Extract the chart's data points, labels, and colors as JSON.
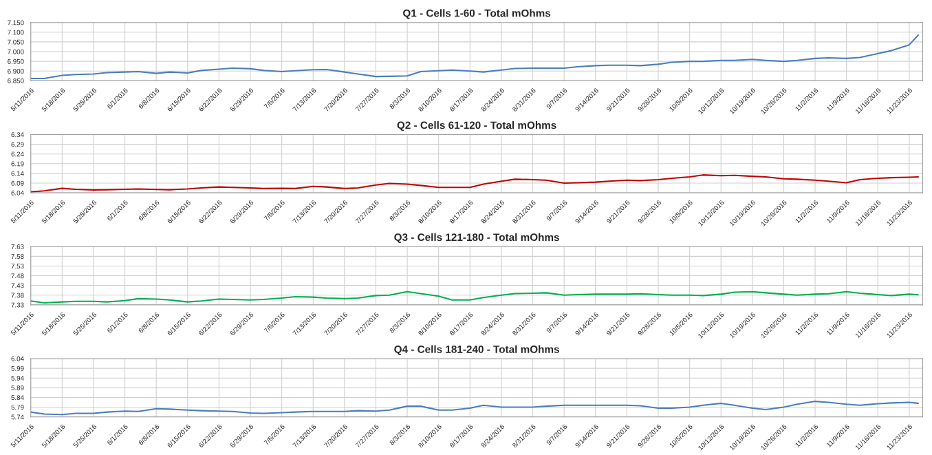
{
  "chart_data": [
    {
      "type": "line",
      "title": "Q1 - Cells 1-60 - Total mOhms",
      "grid": true,
      "marker": "none",
      "line_style": "solid",
      "x": [
        "2016-05-11",
        "2016-05-14",
        "2016-05-18",
        "2016-05-21",
        "2016-05-25",
        "2016-05-28",
        "2016-06-01",
        "2016-06-04",
        "2016-06-08",
        "2016-06-11",
        "2016-06-15",
        "2016-06-18",
        "2016-06-22",
        "2016-06-25",
        "2016-06-29",
        "2016-07-02",
        "2016-07-06",
        "2016-07-09",
        "2016-07-13",
        "2016-07-16",
        "2016-07-20",
        "2016-07-23",
        "2016-07-27",
        "2016-07-30",
        "2016-08-03",
        "2016-08-06",
        "2016-08-10",
        "2016-08-13",
        "2016-08-17",
        "2016-08-20",
        "2016-08-24",
        "2016-08-27",
        "2016-08-31",
        "2016-09-03",
        "2016-09-07",
        "2016-09-10",
        "2016-09-14",
        "2016-09-17",
        "2016-09-21",
        "2016-09-24",
        "2016-09-28",
        "2016-10-01",
        "2016-10-05",
        "2016-10-08",
        "2016-10-12",
        "2016-10-15",
        "2016-10-19",
        "2016-10-22",
        "2016-10-26",
        "2016-10-29",
        "2016-11-02",
        "2016-11-05",
        "2016-11-09",
        "2016-11-12",
        "2016-11-16",
        "2016-11-19",
        "2016-11-23",
        "2016-11-25"
      ],
      "series": [
        {
          "color": "#4a7ebb",
          "values": [
            6.862,
            6.862,
            6.878,
            6.882,
            6.885,
            6.892,
            6.895,
            6.897,
            6.888,
            6.895,
            6.89,
            6.903,
            6.91,
            6.915,
            6.912,
            6.903,
            6.897,
            6.902,
            6.907,
            6.908,
            6.895,
            6.885,
            6.872,
            6.873,
            6.875,
            6.897,
            6.902,
            6.905,
            6.9,
            6.895,
            6.905,
            6.913,
            6.915,
            6.915,
            6.915,
            6.922,
            6.928,
            6.93,
            6.93,
            6.928,
            6.935,
            6.945,
            6.95,
            6.95,
            6.955,
            6.955,
            6.96,
            6.955,
            6.95,
            6.955,
            6.965,
            6.968,
            6.965,
            6.97,
            6.99,
            7.005,
            7.035,
            7.085
          ]
        }
      ],
      "xlim": [
        "2016-05-11",
        "2016-11-26"
      ],
      "xticks": [
        {
          "value": "2016-05-11",
          "label": "5/11/2016"
        },
        {
          "value": "2016-05-18",
          "label": "5/18/2016"
        },
        {
          "value": "2016-05-25",
          "label": "5/25/2016"
        },
        {
          "value": "2016-06-01",
          "label": "6/1/2016"
        },
        {
          "value": "2016-06-08",
          "label": "6/8/2016"
        },
        {
          "value": "2016-06-15",
          "label": "6/15/2016"
        },
        {
          "value": "2016-06-22",
          "label": "6/22/2016"
        },
        {
          "value": "2016-06-29",
          "label": "6/29/2016"
        },
        {
          "value": "2016-07-06",
          "label": "7/6/2016"
        },
        {
          "value": "2016-07-13",
          "label": "7/13/2016"
        },
        {
          "value": "2016-07-20",
          "label": "7/20/2016"
        },
        {
          "value": "2016-07-27",
          "label": "7/27/2016"
        },
        {
          "value": "2016-08-03",
          "label": "8/3/2016"
        },
        {
          "value": "2016-08-10",
          "label": "8/10/2016"
        },
        {
          "value": "2016-08-17",
          "label": "8/17/2016"
        },
        {
          "value": "2016-08-24",
          "label": "8/24/2016"
        },
        {
          "value": "2016-08-31",
          "label": "8/31/2016"
        },
        {
          "value": "2016-09-07",
          "label": "9/7/2016"
        },
        {
          "value": "2016-09-14",
          "label": "9/14/2016"
        },
        {
          "value": "2016-09-21",
          "label": "9/21/2016"
        },
        {
          "value": "2016-09-28",
          "label": "9/28/2016"
        },
        {
          "value": "2016-10-05",
          "label": "10/5/2016"
        },
        {
          "value": "2016-10-12",
          "label": "10/12/2016"
        },
        {
          "value": "2016-10-19",
          "label": "10/19/2016"
        },
        {
          "value": "2016-10-26",
          "label": "10/26/2016"
        },
        {
          "value": "2016-11-02",
          "label": "11/2/2016"
        },
        {
          "value": "2016-11-09",
          "label": "11/9/2016"
        },
        {
          "value": "2016-11-16",
          "label": "11/16/2016"
        },
        {
          "value": "2016-11-23",
          "label": "11/23/2016"
        }
      ],
      "ylim": [
        6.85,
        7.15
      ],
      "yticks": [
        {
          "value": 6.85,
          "label": "6.850"
        },
        {
          "value": 6.9,
          "label": "6.900"
        },
        {
          "value": 6.95,
          "label": "6.950"
        },
        {
          "value": 7.0,
          "label": "7.000"
        },
        {
          "value": 7.05,
          "label": "7.050"
        },
        {
          "value": 7.1,
          "label": "7.100"
        },
        {
          "value": 7.15,
          "label": "7.150"
        }
      ]
    },
    {
      "type": "line",
      "title": "Q2 - Cells 61-120 - Total mOhms",
      "grid": true,
      "marker": "none",
      "line_style": "solid",
      "x": [
        "2016-05-11",
        "2016-05-14",
        "2016-05-18",
        "2016-05-21",
        "2016-05-25",
        "2016-05-28",
        "2016-06-01",
        "2016-06-04",
        "2016-06-08",
        "2016-06-11",
        "2016-06-15",
        "2016-06-18",
        "2016-06-22",
        "2016-06-25",
        "2016-06-29",
        "2016-07-02",
        "2016-07-06",
        "2016-07-09",
        "2016-07-13",
        "2016-07-16",
        "2016-07-20",
        "2016-07-23",
        "2016-07-27",
        "2016-07-30",
        "2016-08-03",
        "2016-08-06",
        "2016-08-10",
        "2016-08-13",
        "2016-08-17",
        "2016-08-20",
        "2016-08-24",
        "2016-08-27",
        "2016-08-31",
        "2016-09-03",
        "2016-09-07",
        "2016-09-10",
        "2016-09-14",
        "2016-09-17",
        "2016-09-21",
        "2016-09-24",
        "2016-09-28",
        "2016-10-01",
        "2016-10-05",
        "2016-10-08",
        "2016-10-12",
        "2016-10-15",
        "2016-10-19",
        "2016-10-22",
        "2016-10-26",
        "2016-10-29",
        "2016-11-02",
        "2016-11-05",
        "2016-11-09",
        "2016-11-12",
        "2016-11-16",
        "2016-11-19",
        "2016-11-23",
        "2016-11-25"
      ],
      "series": [
        {
          "color": "#c00000",
          "values": [
            6.045,
            6.05,
            6.063,
            6.058,
            6.055,
            6.056,
            6.058,
            6.06,
            6.057,
            6.056,
            6.06,
            6.065,
            6.07,
            6.068,
            6.065,
            6.062,
            6.063,
            6.062,
            6.073,
            6.07,
            6.062,
            6.065,
            6.08,
            6.088,
            6.085,
            6.078,
            6.068,
            6.068,
            6.068,
            6.085,
            6.1,
            6.11,
            6.108,
            6.105,
            6.09,
            6.092,
            6.095,
            6.1,
            6.105,
            6.103,
            6.108,
            6.115,
            6.122,
            6.132,
            6.128,
            6.13,
            6.125,
            6.122,
            6.112,
            6.11,
            6.105,
            6.1,
            6.092,
            6.108,
            6.115,
            6.118,
            6.12,
            6.122
          ]
        }
      ],
      "xlim": [
        "2016-05-11",
        "2016-11-26"
      ],
      "xticks": [
        {
          "value": "2016-05-11",
          "label": "5/11/2016"
        },
        {
          "value": "2016-05-18",
          "label": "5/18/2016"
        },
        {
          "value": "2016-05-25",
          "label": "5/25/2016"
        },
        {
          "value": "2016-06-01",
          "label": "6/1/2016"
        },
        {
          "value": "2016-06-08",
          "label": "6/8/2016"
        },
        {
          "value": "2016-06-15",
          "label": "6/15/2016"
        },
        {
          "value": "2016-06-22",
          "label": "6/22/2016"
        },
        {
          "value": "2016-06-29",
          "label": "6/29/2016"
        },
        {
          "value": "2016-07-06",
          "label": "7/6/2016"
        },
        {
          "value": "2016-07-13",
          "label": "7/13/2016"
        },
        {
          "value": "2016-07-20",
          "label": "7/20/2016"
        },
        {
          "value": "2016-07-27",
          "label": "7/27/2016"
        },
        {
          "value": "2016-08-03",
          "label": "8/3/2016"
        },
        {
          "value": "2016-08-10",
          "label": "8/10/2016"
        },
        {
          "value": "2016-08-17",
          "label": "8/17/2016"
        },
        {
          "value": "2016-08-24",
          "label": "8/24/2016"
        },
        {
          "value": "2016-08-31",
          "label": "8/31/2016"
        },
        {
          "value": "2016-09-07",
          "label": "9/7/2016"
        },
        {
          "value": "2016-09-14",
          "label": "9/14/2016"
        },
        {
          "value": "2016-09-21",
          "label": "9/21/2016"
        },
        {
          "value": "2016-09-28",
          "label": "9/28/2016"
        },
        {
          "value": "2016-10-05",
          "label": "10/5/2016"
        },
        {
          "value": "2016-10-12",
          "label": "10/12/2016"
        },
        {
          "value": "2016-10-19",
          "label": "10/19/2016"
        },
        {
          "value": "2016-10-26",
          "label": "10/26/2016"
        },
        {
          "value": "2016-11-02",
          "label": "11/2/2016"
        },
        {
          "value": "2016-11-09",
          "label": "11/9/2016"
        },
        {
          "value": "2016-11-16",
          "label": "11/16/2016"
        },
        {
          "value": "2016-11-23",
          "label": "11/23/2016"
        }
      ],
      "ylim": [
        6.04,
        6.34
      ],
      "yticks": [
        6.04,
        6.09,
        6.14,
        6.19,
        6.24,
        6.29,
        6.34
      ]
    },
    {
      "type": "line",
      "title": "Q3 - Cells 121-180 - Total mOhms",
      "grid": true,
      "marker": "none",
      "line_style": "solid",
      "x": [
        "2016-05-11",
        "2016-05-14",
        "2016-05-18",
        "2016-05-21",
        "2016-05-25",
        "2016-05-28",
        "2016-06-01",
        "2016-06-04",
        "2016-06-08",
        "2016-06-11",
        "2016-06-15",
        "2016-06-18",
        "2016-06-22",
        "2016-06-25",
        "2016-06-29",
        "2016-07-02",
        "2016-07-06",
        "2016-07-09",
        "2016-07-13",
        "2016-07-16",
        "2016-07-20",
        "2016-07-23",
        "2016-07-27",
        "2016-07-30",
        "2016-08-03",
        "2016-08-06",
        "2016-08-10",
        "2016-08-13",
        "2016-08-17",
        "2016-08-20",
        "2016-08-24",
        "2016-08-27",
        "2016-08-31",
        "2016-09-03",
        "2016-09-07",
        "2016-09-10",
        "2016-09-14",
        "2016-09-17",
        "2016-09-21",
        "2016-09-24",
        "2016-09-28",
        "2016-10-01",
        "2016-10-05",
        "2016-10-08",
        "2016-10-12",
        "2016-10-15",
        "2016-10-19",
        "2016-10-22",
        "2016-10-26",
        "2016-10-29",
        "2016-11-02",
        "2016-11-05",
        "2016-11-09",
        "2016-11-12",
        "2016-11-16",
        "2016-11-19",
        "2016-11-23",
        "2016-11-25"
      ],
      "series": [
        {
          "color": "#00b050",
          "values": [
            7.35,
            7.34,
            7.345,
            7.348,
            7.348,
            7.345,
            7.352,
            7.362,
            7.36,
            7.355,
            7.345,
            7.35,
            7.36,
            7.358,
            7.355,
            7.358,
            7.365,
            7.372,
            7.37,
            7.365,
            7.362,
            7.365,
            7.378,
            7.38,
            7.398,
            7.388,
            7.375,
            7.355,
            7.355,
            7.368,
            7.38,
            7.388,
            7.39,
            7.392,
            7.38,
            7.383,
            7.385,
            7.385,
            7.385,
            7.387,
            7.383,
            7.38,
            7.38,
            7.378,
            7.385,
            7.395,
            7.398,
            7.392,
            7.385,
            7.38,
            7.385,
            7.387,
            7.398,
            7.39,
            7.383,
            7.378,
            7.385,
            7.382
          ]
        }
      ],
      "xlim": [
        "2016-05-11",
        "2016-11-26"
      ],
      "xticks": [
        {
          "value": "2016-05-11",
          "label": "5/11/2016"
        },
        {
          "value": "2016-05-18",
          "label": "5/18/2016"
        },
        {
          "value": "2016-05-25",
          "label": "5/25/2016"
        },
        {
          "value": "2016-06-01",
          "label": "6/1/2016"
        },
        {
          "value": "2016-06-08",
          "label": "6/8/2016"
        },
        {
          "value": "2016-06-15",
          "label": "6/15/2016"
        },
        {
          "value": "2016-06-22",
          "label": "6/22/2016"
        },
        {
          "value": "2016-06-29",
          "label": "6/29/2016"
        },
        {
          "value": "2016-07-06",
          "label": "7/6/2016"
        },
        {
          "value": "2016-07-13",
          "label": "7/13/2016"
        },
        {
          "value": "2016-07-20",
          "label": "7/20/2016"
        },
        {
          "value": "2016-07-27",
          "label": "7/27/2016"
        },
        {
          "value": "2016-08-03",
          "label": "8/3/2016"
        },
        {
          "value": "2016-08-10",
          "label": "8/10/2016"
        },
        {
          "value": "2016-08-17",
          "label": "8/17/2016"
        },
        {
          "value": "2016-08-24",
          "label": "8/24/2016"
        },
        {
          "value": "2016-08-31",
          "label": "8/31/2016"
        },
        {
          "value": "2016-09-07",
          "label": "9/7/2016"
        },
        {
          "value": "2016-09-14",
          "label": "9/14/2016"
        },
        {
          "value": "2016-09-21",
          "label": "9/21/2016"
        },
        {
          "value": "2016-09-28",
          "label": "9/28/2016"
        },
        {
          "value": "2016-10-05",
          "label": "10/5/2016"
        },
        {
          "value": "2016-10-12",
          "label": "10/12/2016"
        },
        {
          "value": "2016-10-19",
          "label": "10/19/2016"
        },
        {
          "value": "2016-10-26",
          "label": "10/26/2016"
        },
        {
          "value": "2016-11-02",
          "label": "11/2/2016"
        },
        {
          "value": "2016-11-09",
          "label": "11/9/2016"
        },
        {
          "value": "2016-11-16",
          "label": "11/16/2016"
        },
        {
          "value": "2016-11-23",
          "label": "11/23/2016"
        }
      ],
      "ylim": [
        7.33,
        7.63
      ],
      "yticks": [
        7.33,
        7.38,
        7.43,
        7.48,
        7.53,
        7.58,
        7.63
      ]
    },
    {
      "type": "line",
      "title": "Q4 - Cells 181-240 - Total mOhms",
      "grid": true,
      "marker": "none",
      "line_style": "solid",
      "x": [
        "2016-05-11",
        "2016-05-14",
        "2016-05-18",
        "2016-05-21",
        "2016-05-25",
        "2016-05-28",
        "2016-06-01",
        "2016-06-04",
        "2016-06-08",
        "2016-06-11",
        "2016-06-15",
        "2016-06-18",
        "2016-06-22",
        "2016-06-25",
        "2016-06-29",
        "2016-07-02",
        "2016-07-06",
        "2016-07-09",
        "2016-07-13",
        "2016-07-16",
        "2016-07-20",
        "2016-07-23",
        "2016-07-27",
        "2016-07-30",
        "2016-08-03",
        "2016-08-06",
        "2016-08-10",
        "2016-08-13",
        "2016-08-17",
        "2016-08-20",
        "2016-08-24",
        "2016-08-27",
        "2016-08-31",
        "2016-09-03",
        "2016-09-07",
        "2016-09-10",
        "2016-09-14",
        "2016-09-17",
        "2016-09-21",
        "2016-09-24",
        "2016-09-28",
        "2016-10-01",
        "2016-10-05",
        "2016-10-08",
        "2016-10-12",
        "2016-10-15",
        "2016-10-19",
        "2016-10-22",
        "2016-10-26",
        "2016-10-29",
        "2016-11-02",
        "2016-11-05",
        "2016-11-09",
        "2016-11-12",
        "2016-11-16",
        "2016-11-19",
        "2016-11-23",
        "2016-11-25"
      ],
      "series": [
        {
          "color": "#4a7ebb",
          "values": [
            5.765,
            5.755,
            5.752,
            5.758,
            5.758,
            5.765,
            5.77,
            5.768,
            5.782,
            5.78,
            5.775,
            5.772,
            5.77,
            5.768,
            5.76,
            5.758,
            5.762,
            5.765,
            5.768,
            5.768,
            5.768,
            5.772,
            5.77,
            5.775,
            5.795,
            5.795,
            5.775,
            5.775,
            5.785,
            5.8,
            5.79,
            5.79,
            5.79,
            5.795,
            5.8,
            5.8,
            5.8,
            5.8,
            5.8,
            5.797,
            5.785,
            5.785,
            5.79,
            5.8,
            5.81,
            5.8,
            5.785,
            5.778,
            5.79,
            5.805,
            5.82,
            5.815,
            5.805,
            5.8,
            5.808,
            5.812,
            5.815,
            5.81
          ]
        }
      ],
      "xlim": [
        "2016-05-11",
        "2016-11-26"
      ],
      "xticks": [
        {
          "value": "2016-05-11",
          "label": "5/11/2016"
        },
        {
          "value": "2016-05-18",
          "label": "5/18/2016"
        },
        {
          "value": "2016-05-25",
          "label": "5/25/2016"
        },
        {
          "value": "2016-06-01",
          "label": "6/1/2016"
        },
        {
          "value": "2016-06-08",
          "label": "6/8/2016"
        },
        {
          "value": "2016-06-15",
          "label": "6/15/2016"
        },
        {
          "value": "2016-06-22",
          "label": "6/22/2016"
        },
        {
          "value": "2016-06-29",
          "label": "6/29/2016"
        },
        {
          "value": "2016-07-06",
          "label": "7/6/2016"
        },
        {
          "value": "2016-07-13",
          "label": "7/13/2016"
        },
        {
          "value": "2016-07-20",
          "label": "7/20/2016"
        },
        {
          "value": "2016-07-27",
          "label": "7/27/2016"
        },
        {
          "value": "2016-08-03",
          "label": "8/3/2016"
        },
        {
          "value": "2016-08-10",
          "label": "8/10/2016"
        },
        {
          "value": "2016-08-17",
          "label": "8/17/2016"
        },
        {
          "value": "2016-08-24",
          "label": "8/24/2016"
        },
        {
          "value": "2016-08-31",
          "label": "8/31/2016"
        },
        {
          "value": "2016-09-07",
          "label": "9/7/2016"
        },
        {
          "value": "2016-09-14",
          "label": "9/14/2016"
        },
        {
          "value": "2016-09-21",
          "label": "9/21/2016"
        },
        {
          "value": "2016-09-28",
          "label": "9/28/2016"
        },
        {
          "value": "2016-10-05",
          "label": "10/5/2016"
        },
        {
          "value": "2016-10-12",
          "label": "10/12/2016"
        },
        {
          "value": "2016-10-19",
          "label": "10/19/2016"
        },
        {
          "value": "2016-10-26",
          "label": "10/26/2016"
        },
        {
          "value": "2016-11-02",
          "label": "11/2/2016"
        },
        {
          "value": "2016-11-09",
          "label": "11/9/2016"
        },
        {
          "value": "2016-11-16",
          "label": "11/16/2016"
        },
        {
          "value": "2016-11-23",
          "label": "11/23/2016"
        }
      ],
      "ylim": [
        5.74,
        6.04
      ],
      "yticks": [
        5.74,
        5.79,
        5.84,
        5.89,
        5.94,
        5.99,
        6.04
      ]
    }
  ]
}
